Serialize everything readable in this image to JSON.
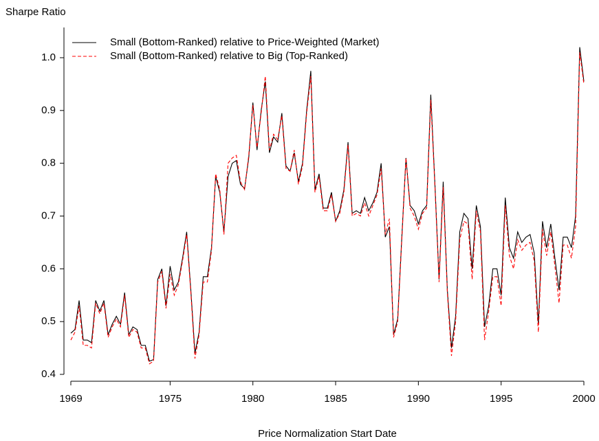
{
  "chart_data": {
    "type": "line",
    "y_label": "Sharpe Ratio",
    "x_label": "Price Normalization Start Date",
    "x": [
      1969,
      1969.25,
      1969.5,
      1969.75,
      1970,
      1970.25,
      1970.5,
      1970.75,
      1971,
      1971.25,
      1971.5,
      1971.75,
      1972,
      1972.25,
      1972.5,
      1972.75,
      1973,
      1973.25,
      1973.5,
      1973.75,
      1974,
      1974.25,
      1974.5,
      1974.75,
      1975,
      1975.25,
      1975.5,
      1975.75,
      1976,
      1976.25,
      1976.5,
      1976.75,
      1977,
      1977.25,
      1977.5,
      1977.75,
      1978,
      1978.25,
      1978.5,
      1978.75,
      1979,
      1979.25,
      1979.5,
      1979.75,
      1980,
      1980.25,
      1980.5,
      1980.75,
      1981,
      1981.25,
      1981.5,
      1981.75,
      1982,
      1982.25,
      1982.5,
      1982.75,
      1983,
      1983.25,
      1983.5,
      1983.75,
      1984,
      1984.25,
      1984.5,
      1984.75,
      1985,
      1985.25,
      1985.5,
      1985.75,
      1986,
      1986.25,
      1986.5,
      1986.75,
      1987,
      1987.25,
      1987.5,
      1987.75,
      1988,
      1988.25,
      1988.5,
      1988.75,
      1989,
      1989.25,
      1989.5,
      1989.75,
      1990,
      1990.25,
      1990.5,
      1990.75,
      1991,
      1991.25,
      1991.5,
      1991.75,
      1992,
      1992.25,
      1992.5,
      1992.75,
      1993,
      1993.25,
      1993.5,
      1993.75,
      1994,
      1994.25,
      1994.5,
      1994.75,
      1995,
      1995.25,
      1995.5,
      1995.75,
      1996,
      1996.25,
      1996.5,
      1996.75,
      1997,
      1997.25,
      1997.5,
      1997.75,
      1998,
      1998.25,
      1998.5,
      1998.75,
      1999,
      1999.25,
      1999.5,
      1999.75,
      2000
    ],
    "series": [
      {
        "name": "Small (Bottom-Ranked) relative to Price-Weighted (Market)",
        "color": "#000000",
        "dash": "solid",
        "values": [
          0.478,
          0.485,
          0.54,
          0.465,
          0.465,
          0.46,
          0.54,
          0.52,
          0.54,
          0.475,
          0.495,
          0.51,
          0.495,
          0.555,
          0.475,
          0.49,
          0.485,
          0.455,
          0.455,
          0.425,
          0.428,
          0.58,
          0.6,
          0.53,
          0.605,
          0.56,
          0.575,
          0.62,
          0.67,
          0.56,
          0.44,
          0.48,
          0.585,
          0.585,
          0.64,
          0.775,
          0.745,
          0.67,
          0.775,
          0.8,
          0.805,
          0.76,
          0.752,
          0.81,
          0.915,
          0.825,
          0.9,
          0.955,
          0.82,
          0.85,
          0.84,
          0.895,
          0.795,
          0.785,
          0.82,
          0.765,
          0.8,
          0.9,
          0.975,
          0.75,
          0.78,
          0.715,
          0.715,
          0.745,
          0.69,
          0.71,
          0.75,
          0.84,
          0.705,
          0.71,
          0.705,
          0.735,
          0.71,
          0.725,
          0.745,
          0.8,
          0.66,
          0.68,
          0.475,
          0.505,
          0.66,
          0.81,
          0.72,
          0.71,
          0.685,
          0.71,
          0.72,
          0.93,
          0.76,
          0.58,
          0.765,
          0.56,
          0.45,
          0.51,
          0.67,
          0.705,
          0.695,
          0.6,
          0.72,
          0.68,
          0.49,
          0.53,
          0.6,
          0.6,
          0.55,
          0.735,
          0.64,
          0.62,
          0.67,
          0.65,
          0.66,
          0.665,
          0.63,
          0.495,
          0.69,
          0.64,
          0.685,
          0.62,
          0.56,
          0.66,
          0.66,
          0.64,
          0.7,
          1.02,
          0.955
        ]
      },
      {
        "name": "Small (Bottom-Ranked) relative to Big (Top-Ranked)",
        "color": "#ff0000",
        "dash": "dashed",
        "values": [
          0.465,
          0.48,
          0.53,
          0.455,
          0.455,
          0.45,
          0.535,
          0.515,
          0.535,
          0.47,
          0.49,
          0.505,
          0.49,
          0.55,
          0.47,
          0.485,
          0.48,
          0.45,
          0.45,
          0.42,
          0.425,
          0.575,
          0.595,
          0.525,
          0.59,
          0.55,
          0.57,
          0.615,
          0.665,
          0.555,
          0.43,
          0.475,
          0.575,
          0.575,
          0.635,
          0.78,
          0.75,
          0.665,
          0.8,
          0.81,
          0.815,
          0.765,
          0.75,
          0.815,
          0.91,
          0.83,
          0.895,
          0.965,
          0.825,
          0.855,
          0.845,
          0.89,
          0.79,
          0.785,
          0.825,
          0.76,
          0.795,
          0.895,
          0.965,
          0.745,
          0.775,
          0.71,
          0.71,
          0.74,
          0.69,
          0.705,
          0.745,
          0.835,
          0.7,
          0.705,
          0.7,
          0.725,
          0.7,
          0.72,
          0.74,
          0.79,
          0.665,
          0.695,
          0.47,
          0.5,
          0.655,
          0.81,
          0.715,
          0.7,
          0.675,
          0.705,
          0.715,
          0.92,
          0.755,
          0.575,
          0.755,
          0.555,
          0.435,
          0.5,
          0.655,
          0.69,
          0.685,
          0.58,
          0.71,
          0.67,
          0.465,
          0.52,
          0.585,
          0.585,
          0.53,
          0.72,
          0.625,
          0.6,
          0.655,
          0.635,
          0.645,
          0.65,
          0.615,
          0.48,
          0.675,
          0.625,
          0.67,
          0.605,
          0.535,
          0.645,
          0.645,
          0.62,
          0.68,
          1.01,
          0.95
        ]
      }
    ],
    "xlim": [
      1969,
      2000
    ],
    "xticks": [
      1969,
      1975,
      1980,
      1985,
      1990,
      1995,
      2000
    ],
    "ylim": [
      0.4,
      1.0
    ],
    "yticks": [
      0.4,
      0.5,
      0.6,
      0.7,
      0.8,
      0.9,
      {
        "value": 1,
        "label": "1.0"
      }
    ],
    "legend": "top-left",
    "grid": false
  }
}
